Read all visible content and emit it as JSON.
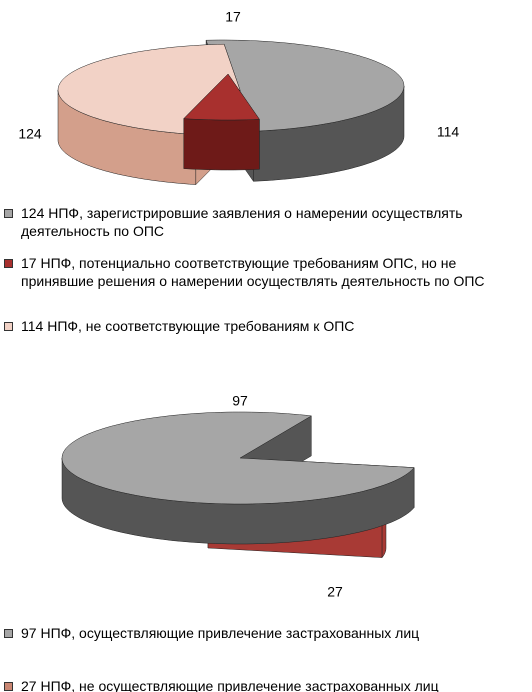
{
  "chart_data": [
    {
      "type": "pie",
      "categories": [
        "124 НПФ, зарегистрировшие заявления о намерении осуществлять деятельность по ОПС",
        "17 НПФ, потенциально соответствующие требованиям ОПС, но не принявшие решения о намерении осуществлять деятельность по ОПС",
        "114 НПФ, не соответствующие требованиям к ОПС"
      ],
      "values": [
        124,
        17,
        114
      ],
      "colors": [
        "#a6a6a6",
        "#a8302e",
        "#f2d2c6"
      ],
      "side_colors": [
        "#555555",
        "#6e1a18",
        "#d39f8b"
      ]
    },
    {
      "type": "pie",
      "categories": [
        "97 НПФ, осуществляющие привлечение застрахованных лиц",
        "27 НПФ, не осуществляющие привлечение застрахованных лиц"
      ],
      "values": [
        97,
        27
      ],
      "colors": [
        "#a6a6a6",
        "#c98672"
      ],
      "side_colors": [
        "#555555",
        "#a83a35"
      ]
    }
  ]
}
